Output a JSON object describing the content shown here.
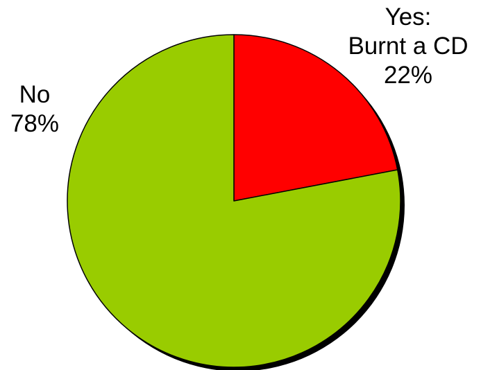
{
  "chart_data": {
    "type": "pie",
    "title": "",
    "slices": [
      {
        "label_lines": [
          "Yes:",
          "Burnt a CD"
        ],
        "percent_label": "22%",
        "value": 22,
        "color": "#ff0000"
      },
      {
        "label_lines": [
          "No"
        ],
        "percent_label": "78%",
        "value": 78,
        "color": "#99cc00"
      }
    ],
    "start_angle_deg": 0,
    "direction": "clockwise",
    "shadow": true,
    "outline_color": "#000000"
  }
}
